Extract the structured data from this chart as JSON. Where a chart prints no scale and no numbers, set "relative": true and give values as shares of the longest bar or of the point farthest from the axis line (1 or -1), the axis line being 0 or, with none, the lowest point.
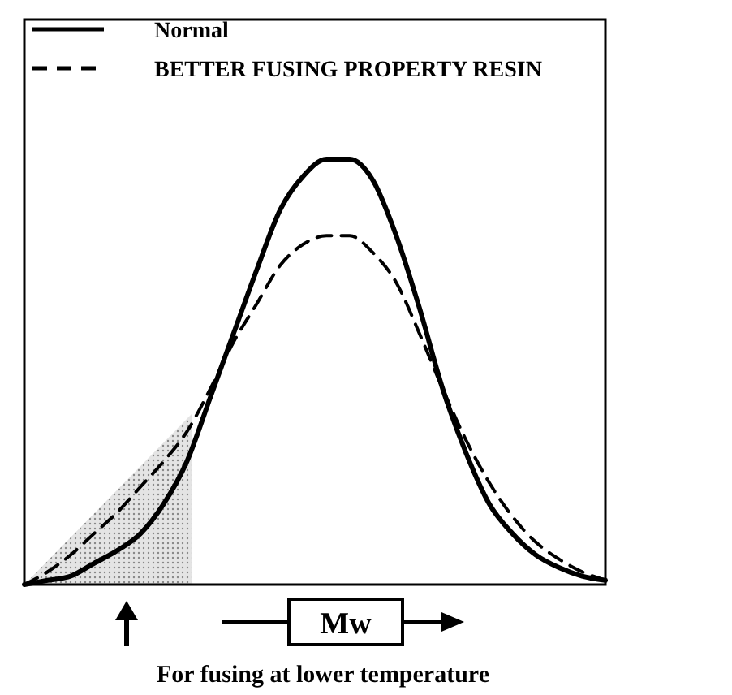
{
  "chart_data": {
    "type": "line",
    "relative": true,
    "legend": "top left",
    "categories": [
      null,
      null,
      null,
      null,
      null,
      null,
      null,
      null,
      null,
      null,
      null,
      null,
      null,
      null,
      null,
      null,
      null,
      null,
      null,
      null,
      null,
      null,
      null,
      null,
      null,
      null
    ],
    "series": [
      {
        "name": "Normal",
        "color": "#000000",
        "line_style": "solid",
        "values": [
          0,
          0.01,
          0.02,
          0.05,
          0.08,
          0.12,
          0.19,
          0.29,
          0.44,
          0.59,
          0.74,
          0.88,
          0.96,
          1,
          1,
          0.95,
          0.82,
          0.65,
          0.46,
          0.31,
          0.19,
          0.12,
          0.07,
          0.04,
          0.02,
          0.01
        ]
      },
      {
        "name": "BETTER FUSING PROPERTY RESIN",
        "color": "#000000",
        "line_style": "dashed",
        "values": [
          0,
          0.03,
          0.07,
          0.12,
          0.17,
          0.23,
          0.29,
          0.36,
          0.46,
          0.57,
          0.66,
          0.75,
          0.8,
          0.82,
          0.82,
          0.78,
          0.71,
          0.59,
          0.46,
          0.34,
          0.24,
          0.16,
          0.1,
          0.06,
          0.03,
          0.01
        ]
      }
    ],
    "annotations": [
      "Mw",
      "For fusing at lower temperature"
    ]
  }
}
